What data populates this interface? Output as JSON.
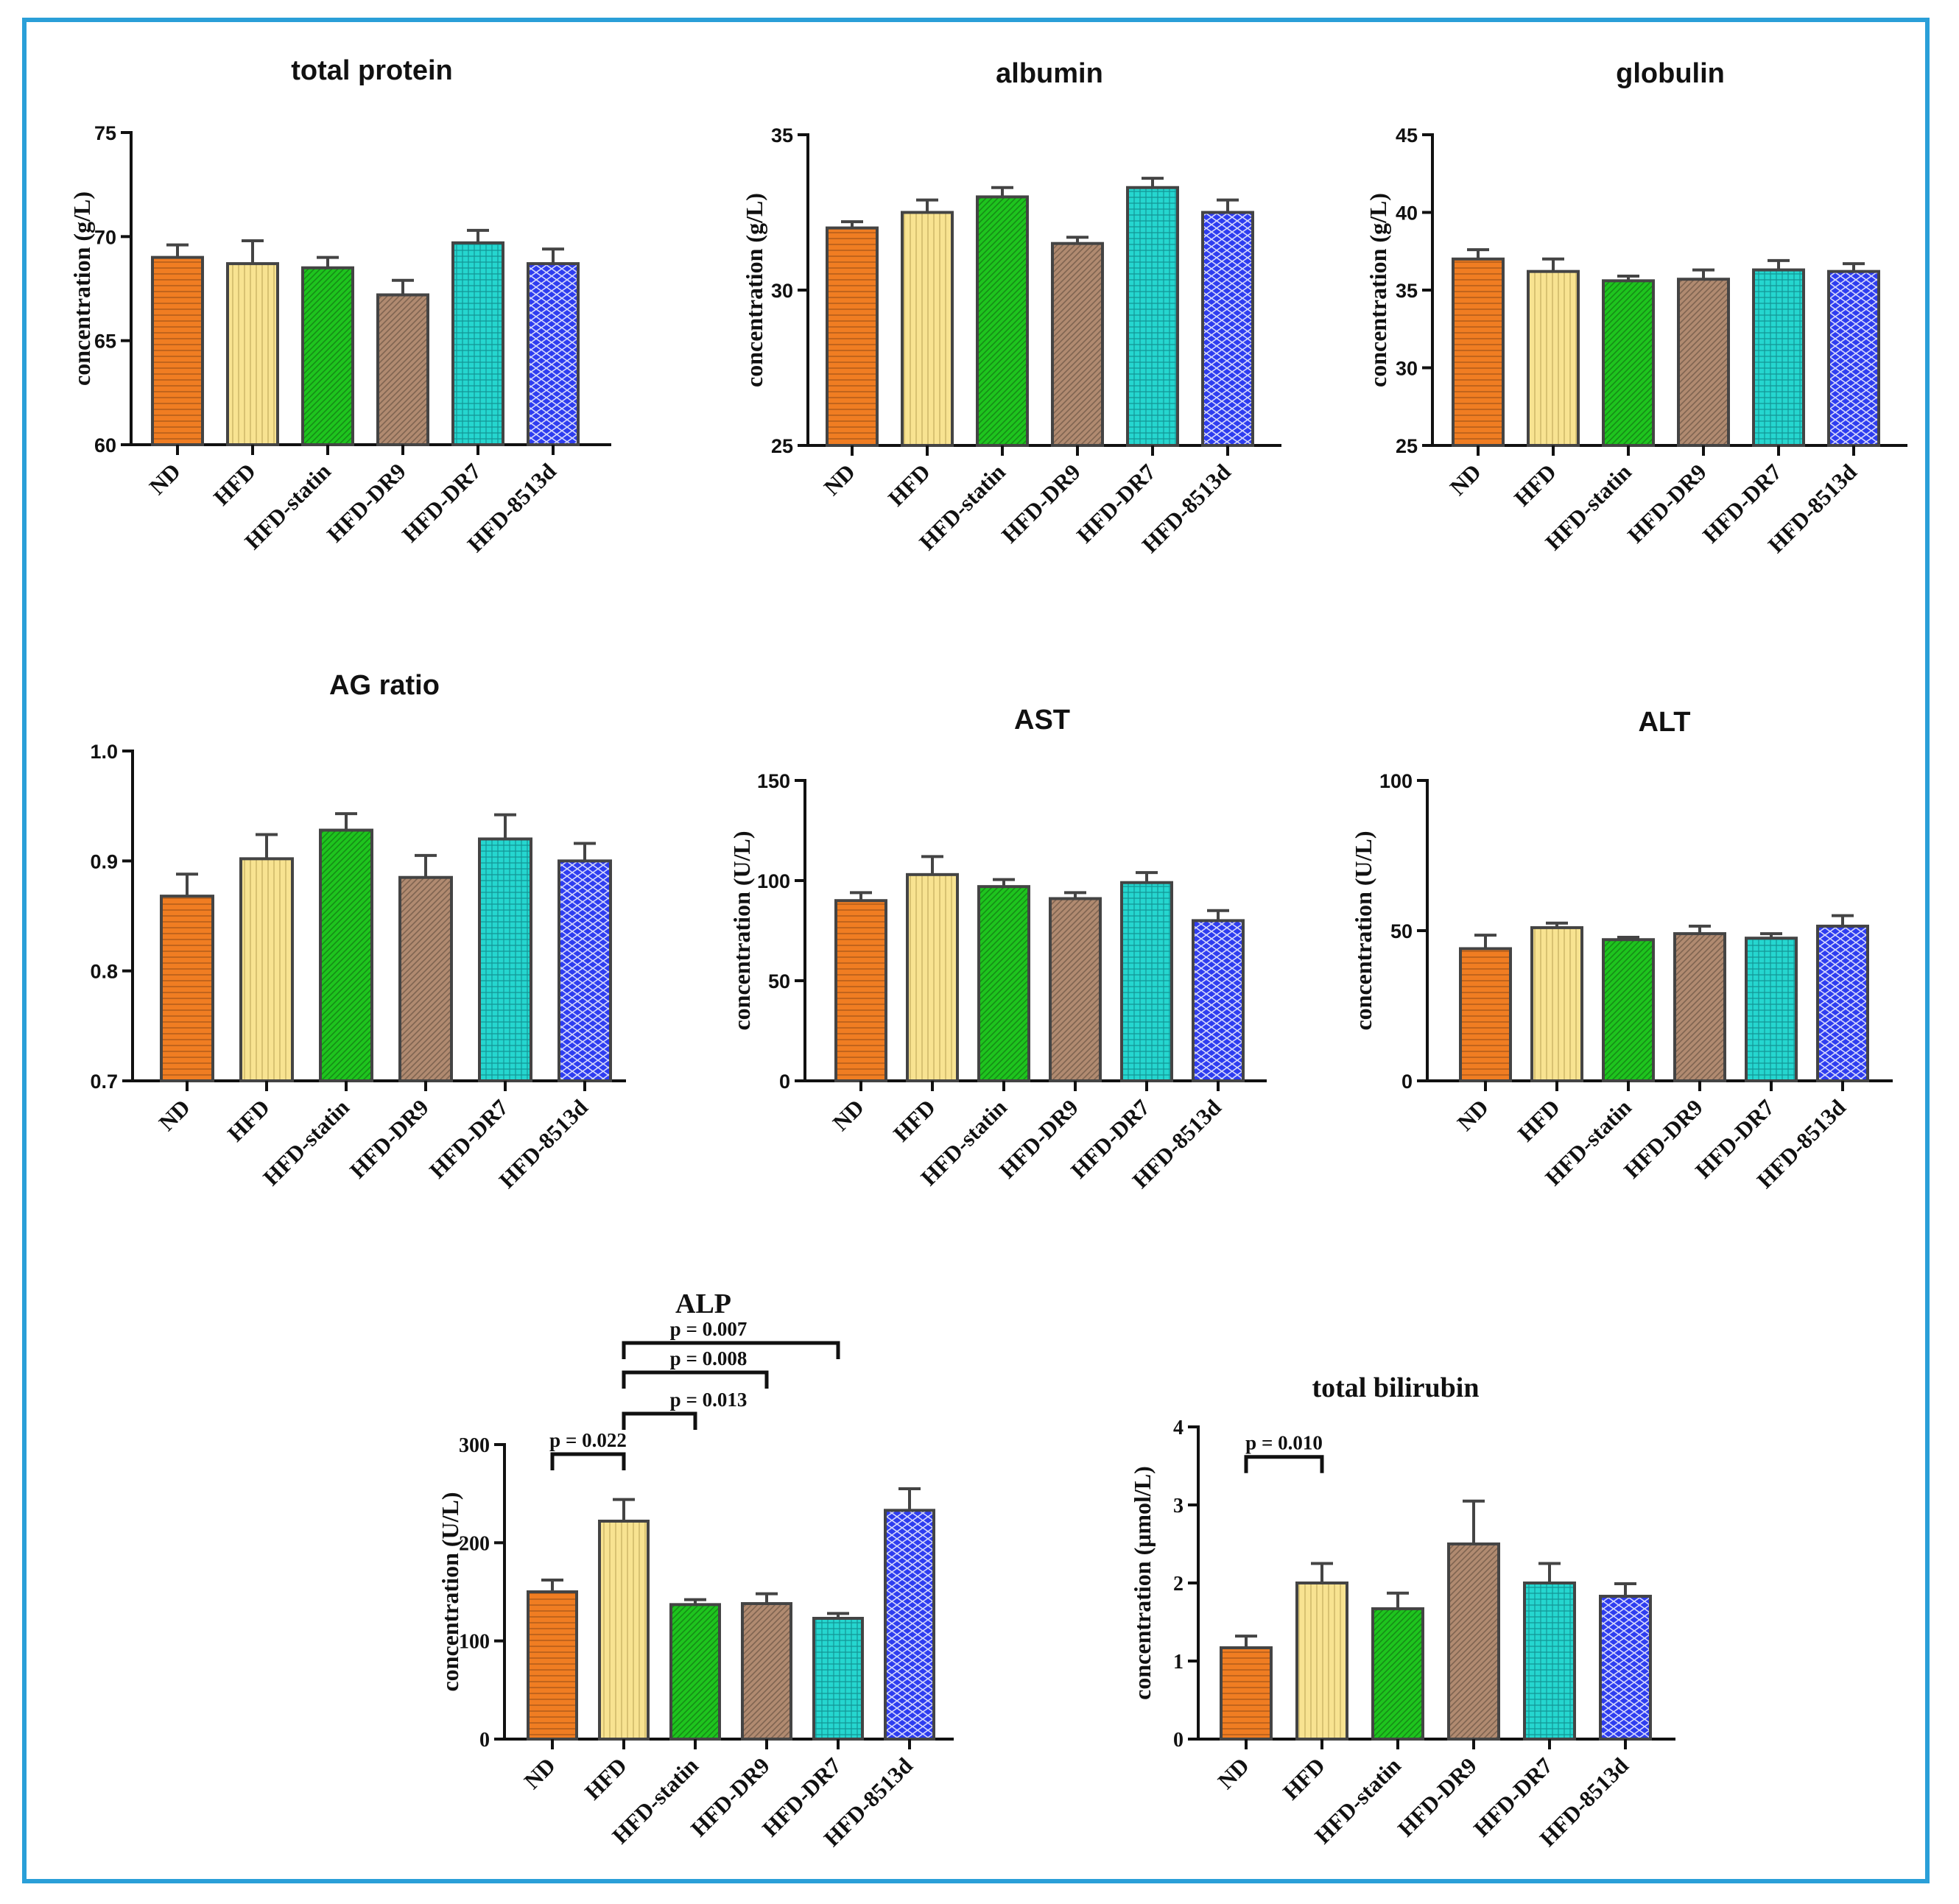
{
  "categories": [
    "ND",
    "HFD",
    "HFD-statin",
    "HFD-DR9",
    "HFD-DR7",
    "HFD-8513d"
  ],
  "series_colors": {
    "ND": "#f07d22",
    "HFD": "#f8e391",
    "HFD-statin": "#1ec41e",
    "HFD-DR9": "#b08a70",
    "HFD-DR7": "#25d6cf",
    "HFD-8513d": "#2e3df0"
  },
  "frame_color": "#2a9fd8",
  "chart_data": [
    {
      "type": "bar",
      "title": "total protein",
      "ylabel": "concentration (g/L)",
      "ylim": [
        60,
        75
      ],
      "yticks": [
        "60",
        "65",
        "70",
        "75"
      ],
      "categories": [
        "ND",
        "HFD",
        "HFD-statin",
        "HFD-DR9",
        "HFD-DR7",
        "HFD-8513d"
      ],
      "values": [
        69.0,
        68.7,
        68.5,
        67.2,
        69.7,
        68.7
      ],
      "errors": [
        0.6,
        1.1,
        0.5,
        0.7,
        0.6,
        0.7
      ],
      "annotations": []
    },
    {
      "type": "bar",
      "title": "albumin",
      "ylabel": "concentration (g/L)",
      "ylim": [
        25,
        35
      ],
      "yticks": [
        "25",
        "30",
        "35"
      ],
      "categories": [
        "ND",
        "HFD",
        "HFD-statin",
        "HFD-DR9",
        "HFD-DR7",
        "HFD-8513d"
      ],
      "values": [
        32.0,
        32.5,
        33.0,
        31.5,
        33.3,
        32.5
      ],
      "errors": [
        0.2,
        0.4,
        0.3,
        0.2,
        0.3,
        0.4
      ],
      "annotations": []
    },
    {
      "type": "bar",
      "title": "globulin",
      "ylabel": "concentration (g/L)",
      "ylim": [
        25,
        45
      ],
      "yticks": [
        "25",
        "30",
        "35",
        "40",
        "45"
      ],
      "categories": [
        "ND",
        "HFD",
        "HFD-statin",
        "HFD-DR9",
        "HFD-DR7",
        "HFD-8513d"
      ],
      "values": [
        37.0,
        36.2,
        35.6,
        35.7,
        36.3,
        36.2
      ],
      "errors": [
        0.6,
        0.8,
        0.3,
        0.6,
        0.6,
        0.5
      ],
      "annotations": []
    },
    {
      "type": "bar",
      "title": "AG ratio",
      "ylabel": "",
      "ylim": [
        0.7,
        1.0
      ],
      "yticks": [
        "0.7",
        "0.8",
        "0.9",
        "1.0"
      ],
      "categories": [
        "ND",
        "HFD",
        "HFD-statin",
        "HFD-DR9",
        "HFD-DR7",
        "HFD-8513d"
      ],
      "values": [
        0.868,
        0.902,
        0.928,
        0.885,
        0.92,
        0.9
      ],
      "errors": [
        0.02,
        0.022,
        0.015,
        0.02,
        0.022,
        0.016
      ],
      "annotations": []
    },
    {
      "type": "bar",
      "title": "AST",
      "ylabel": "concentration (U/L)",
      "ylim": [
        0,
        150
      ],
      "yticks": [
        "0",
        "50",
        "100",
        "150"
      ],
      "categories": [
        "ND",
        "HFD",
        "HFD-statin",
        "HFD-DR9",
        "HFD-DR7",
        "HFD-8513d"
      ],
      "values": [
        90,
        103,
        97,
        91,
        99,
        80
      ],
      "errors": [
        4,
        9,
        3.5,
        3,
        5,
        5
      ],
      "annotations": []
    },
    {
      "type": "bar",
      "title": "ALT",
      "ylabel": "concentration (U/L)",
      "ylim": [
        0,
        100
      ],
      "yticks": [
        "0",
        "50",
        "100"
      ],
      "categories": [
        "ND",
        "HFD",
        "HFD-statin",
        "HFD-DR9",
        "HFD-DR7",
        "HFD-8513d"
      ],
      "values": [
        44,
        51,
        47,
        49,
        47.5,
        51.5
      ],
      "errors": [
        4.5,
        1.5,
        0.8,
        2.5,
        1.5,
        3.5
      ],
      "annotations": []
    },
    {
      "type": "bar",
      "title": "ALP",
      "ylabel": "concentration (U/L)",
      "ylim": [
        0,
        300
      ],
      "yticks": [
        "0",
        "100",
        "200",
        "300"
      ],
      "categories": [
        "ND",
        "HFD",
        "HFD-statin",
        "HFD-DR9",
        "HFD-DR7",
        "HFD-8513d"
      ],
      "values": [
        150,
        222,
        137,
        138,
        123,
        233
      ],
      "errors": [
        12,
        22,
        5,
        10,
        5,
        22
      ],
      "annotations": [
        {
          "from": 0,
          "to": 1,
          "label": "p = 0.022"
        },
        {
          "from": 1,
          "to": 2,
          "label": "p = 0.013"
        },
        {
          "from": 1,
          "to": 3,
          "label": "p = 0.008"
        },
        {
          "from": 1,
          "to": 4,
          "label": "p = 0.007"
        }
      ]
    },
    {
      "type": "bar",
      "title": "total bilirubin",
      "ylabel": "concentration (μmol/L)",
      "ylim": [
        0,
        4
      ],
      "yticks": [
        "0",
        "1",
        "2",
        "3",
        "4"
      ],
      "categories": [
        "ND",
        "HFD",
        "HFD-statin",
        "HFD-DR9",
        "HFD-DR7",
        "HFD-8513d"
      ],
      "values": [
        1.17,
        2.0,
        1.67,
        2.5,
        2.0,
        1.83
      ],
      "errors": [
        0.15,
        0.25,
        0.2,
        0.55,
        0.25,
        0.16
      ],
      "annotations": [
        {
          "from": 0,
          "to": 1,
          "label": "p = 0.010"
        }
      ]
    }
  ]
}
